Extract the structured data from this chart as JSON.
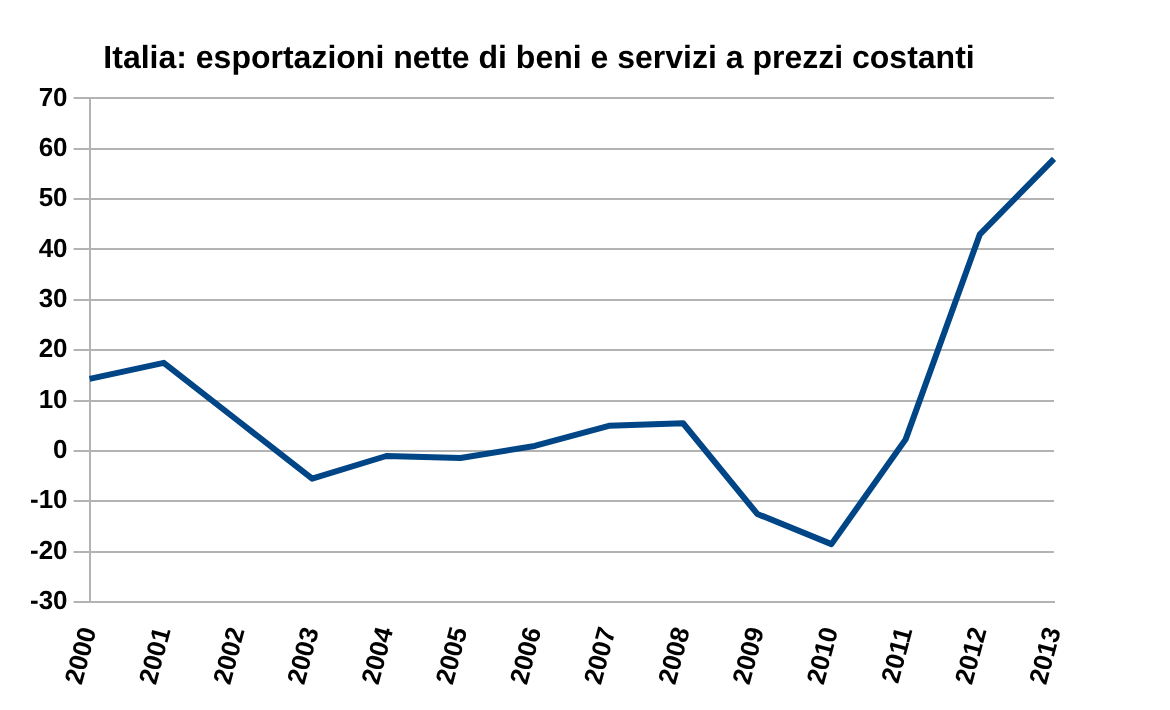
{
  "chart_data": {
    "type": "line",
    "title": "Italia: esportazioni nette di beni e servizi a prezzi costanti",
    "categories": [
      "2000",
      "2001",
      "2002",
      "2003",
      "2004",
      "2005",
      "2006",
      "2007",
      "2008",
      "2009",
      "2010",
      "2011",
      "2012",
      "2013"
    ],
    "series": [
      {
        "color": "#004586",
        "values": [
          14.3,
          17.5,
          6,
          -5.5,
          -1,
          -1.4,
          1,
          5,
          5.5,
          -12.5,
          -18.5,
          2.3,
          43,
          58
        ]
      }
    ],
    "ylim": [
      -30,
      70
    ],
    "yticks": [
      -30,
      -20,
      -10,
      0,
      10,
      20,
      30,
      40,
      50,
      60,
      70
    ],
    "grid": "y",
    "legend": false,
    "marker": "none",
    "line_style": "solid"
  }
}
